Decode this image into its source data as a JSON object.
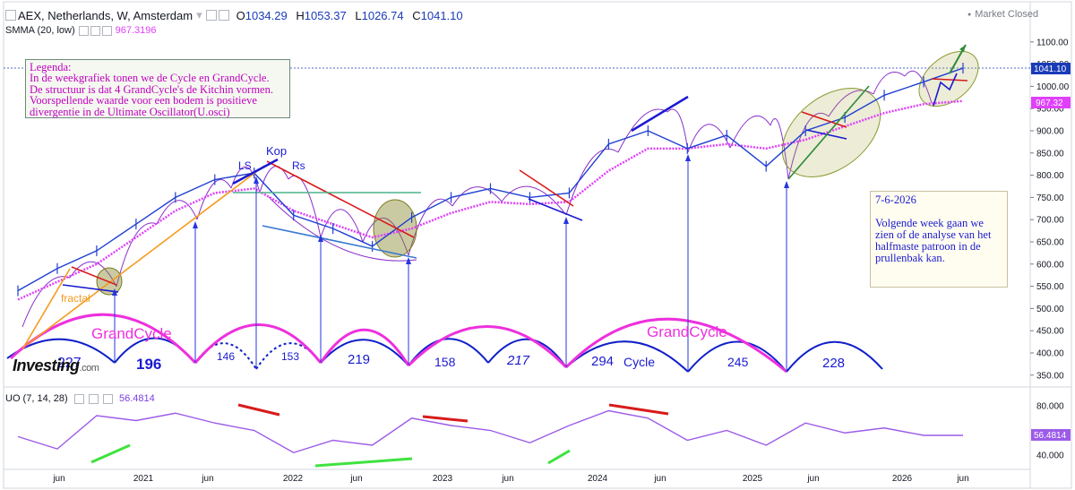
{
  "header": {
    "symbol": "AEX, Netherlands, W, Amsterdam",
    "o_label": "O",
    "o_value": "1034.29",
    "h_label": "H",
    "h_value": "1053.37",
    "l_label": "L",
    "l_value": "1026.74",
    "c_label": "C",
    "c_value": "1041.10",
    "market_status": "Market Closed"
  },
  "indicators": {
    "smma_label": "SMMA (20, low)",
    "smma_value": "967.3196",
    "uo_label": "UO (7, 14, 28)",
    "uo_value": "56.4814"
  },
  "legend_box": {
    "lines": [
      "Legenda:",
      "In de weekgrafiek tonen  we de Cycle en GrandCycle.",
      "De structuur is dat 4 GrandCycle's de Kitchin vormen.",
      "Voorspellende waarde voor een bodem is positieve",
      "divergentie in de Ultimate Oscillator(U.osci)"
    ]
  },
  "note_box": {
    "date": "7-6-2026",
    "text": "Volgende week gaan we zien of de analyse van het halfmaste patroon in de prullenbak kan."
  },
  "annotations": {
    "kop": "Kop",
    "ls": "LS",
    "rs": "Rs",
    "fractal": "fractal",
    "grandcycle_1": "GrandCycle",
    "grandcycle_2": "GrandCycle",
    "cycle": "Cycle",
    "watermark": "Investing",
    "watermark_suffix": ".com"
  },
  "cycle_counts": [
    "227",
    "196",
    "146",
    "153",
    "219",
    "158",
    "217",
    "294",
    "245",
    "228"
  ],
  "price_axis": {
    "ticks": [
      "1100.00",
      "1050.00",
      "1000.00",
      "950.00",
      "900.00",
      "850.00",
      "800.00",
      "750.00",
      "700.00",
      "650.00",
      "600.00",
      "550.00",
      "500.00",
      "450.00",
      "400.00",
      "350.00"
    ],
    "last_price": "1041.10",
    "smma_tag": "967.32"
  },
  "uo_axis": {
    "ticks": [
      "80.000",
      "40.000"
    ],
    "tag": "56.4814"
  },
  "time_axis": [
    "jun",
    "2021",
    "jun",
    "2022",
    "jun",
    "2023",
    "jun",
    "2024",
    "jun",
    "2025",
    "jun",
    "2026",
    "jun"
  ],
  "colors": {
    "price_bars": "#1f3fd1",
    "price_down": "#e0505a",
    "smma": "#e040fb",
    "uo": "#9c5be8",
    "cycle": "#1020c8",
    "grandcycle": "#ee30dd",
    "purple_arcs": "#8a2fc8",
    "legend_text": "#c000c0"
  },
  "chart_data": [
    {
      "type": "line",
      "title": "AEX, Netherlands, W, Amsterdam",
      "ylim": [
        330,
        1130
      ],
      "x": [
        "2020-06",
        "2020-09",
        "2020-12",
        "2021-03",
        "2021-06",
        "2021-09",
        "2021-12",
        "2022-03",
        "2022-06",
        "2022-09",
        "2022-12",
        "2023-03",
        "2023-06",
        "2023-09",
        "2023-12",
        "2024-03",
        "2024-06",
        "2024-09",
        "2024-12",
        "2025-03",
        "2025-06",
        "2025-09",
        "2025-12",
        "2026-03",
        "2026-06"
      ],
      "series": [
        {
          "name": "AEX",
          "values": [
            540,
            590,
            630,
            690,
            750,
            790,
            805,
            710,
            680,
            640,
            705,
            750,
            770,
            750,
            760,
            870,
            900,
            860,
            890,
            820,
            900,
            930,
            980,
            1010,
            1041
          ]
        },
        {
          "name": "SMMA (20, low)",
          "values": [
            520,
            560,
            600,
            660,
            720,
            760,
            770,
            720,
            690,
            660,
            680,
            715,
            740,
            735,
            740,
            810,
            860,
            860,
            870,
            860,
            880,
            910,
            940,
            960,
            967
          ]
        }
      ]
    },
    {
      "type": "line",
      "title": "UO (7, 14, 28)",
      "ylim": [
        30,
        90
      ],
      "x": [
        "2020-06",
        "2020-09",
        "2020-12",
        "2021-03",
        "2021-06",
        "2021-09",
        "2021-12",
        "2022-03",
        "2022-06",
        "2022-09",
        "2022-12",
        "2023-03",
        "2023-06",
        "2023-09",
        "2023-12",
        "2024-03",
        "2024-06",
        "2024-09",
        "2024-12",
        "2025-03",
        "2025-06",
        "2025-09",
        "2025-12",
        "2026-03",
        "2026-06"
      ],
      "series": [
        {
          "name": "UO",
          "values": [
            55,
            45,
            72,
            68,
            74,
            66,
            60,
            42,
            52,
            48,
            70,
            64,
            60,
            50,
            64,
            76,
            70,
            52,
            60,
            48,
            66,
            58,
            62,
            56,
            56
          ]
        }
      ]
    }
  ]
}
